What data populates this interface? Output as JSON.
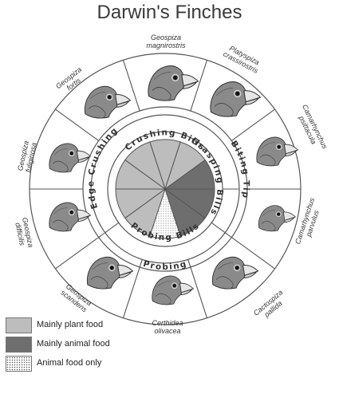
{
  "title": "Darwin's Finches",
  "species": [
    {
      "id": "magnirostris",
      "line1": "Geospiza",
      "line2": "magnirostris"
    },
    {
      "id": "crassirostris",
      "line1": "Platyspiza",
      "line2": "crassirostris"
    },
    {
      "id": "psittacula",
      "line1": "Camarhynchus",
      "line2": "psittacula"
    },
    {
      "id": "parvulus",
      "line1": "Camarhynchus",
      "line2": "parvulus"
    },
    {
      "id": "pallida",
      "line1": "Cactospiza",
      "line2": "pallida"
    },
    {
      "id": "olivacea",
      "line1": "Certhidea",
      "line2": "olivacea"
    },
    {
      "id": "scandens",
      "line1": "Geospiza",
      "line2": "scandens"
    },
    {
      "id": "difficilis",
      "line1": "Geospiza",
      "line2": "difficilis"
    },
    {
      "id": "fuliginosa",
      "line1": "Geospiza",
      "line2": "fuliginosa"
    },
    {
      "id": "fortis",
      "line1": "Geospiza",
      "line2": "fortis"
    }
  ],
  "ring_labels": {
    "edge_crushing": "Edge Crushing",
    "crushing_bills": "Crushing Bills",
    "biting_tip": "Biting Tip",
    "grasping_bills": "Grasping Bills",
    "probing_bills": "Probing Bills",
    "probing": "Probing"
  },
  "legend": [
    {
      "label": "Mainly plant food",
      "color": "#bdbdbd",
      "pattern": "solid"
    },
    {
      "label": "Mainly animal food",
      "color": "#6e6e6e",
      "pattern": "solid"
    },
    {
      "label": "Animal food only",
      "color": "#ffffff",
      "pattern": "dotted"
    }
  ],
  "pie_slices": [
    {
      "food": "Mainly plant food",
      "color": "#bdbdbd"
    },
    {
      "food": "Mainly plant food",
      "color": "#bdbdbd"
    },
    {
      "food": "Mainly animal food",
      "color": "#6e6e6e"
    },
    {
      "food": "Mainly animal food",
      "color": "#6e6e6e"
    },
    {
      "food": "Mainly animal food",
      "color": "#6e6e6e"
    },
    {
      "food": "Animal food only",
      "color": "#ffffff"
    },
    {
      "food": "Mainly plant food",
      "color": "#bdbdbd"
    },
    {
      "food": "Mainly plant food",
      "color": "#bdbdbd"
    },
    {
      "food": "Mainly plant food",
      "color": "#bdbdbd"
    },
    {
      "food": "Mainly plant food",
      "color": "#bdbdbd"
    }
  ]
}
